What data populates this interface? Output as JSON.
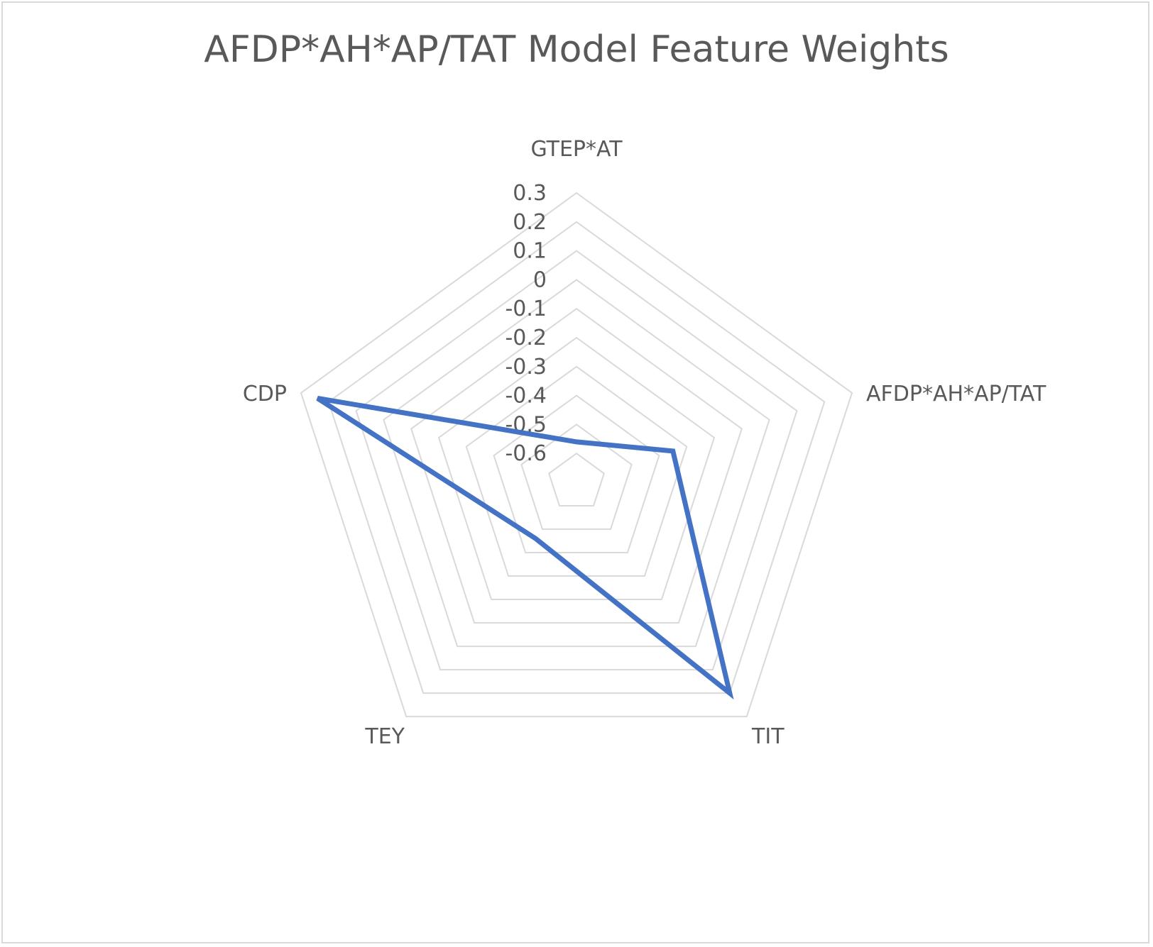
{
  "chart_data": {
    "type": "radar",
    "title": "AFDP*AH*AP/TAT Model Feature Weights",
    "categories": [
      "GTEP*AT",
      "AFDP*AH*AP/TAT",
      "TIT",
      "TEY",
      "CDP"
    ],
    "series": [
      {
        "values": [
          -0.56,
          -0.35,
          0.2,
          -0.46,
          0.24
        ]
      }
    ],
    "rlim": [
      -0.7,
      0.3
    ],
    "ticks": [
      "0.3",
      "0.2",
      "0.1",
      "0",
      "-0.1",
      "-0.2",
      "-0.3",
      "-0.4",
      "-0.5",
      "-0.6"
    ],
    "tick_values": [
      0.3,
      0.2,
      0.1,
      0,
      -0.1,
      -0.2,
      -0.3,
      -0.4,
      -0.5,
      -0.6
    ],
    "grid": true,
    "legend": "none",
    "colors": {
      "series": "#4472c4",
      "grid": "#d9d9d9",
      "text": "#595959"
    }
  }
}
